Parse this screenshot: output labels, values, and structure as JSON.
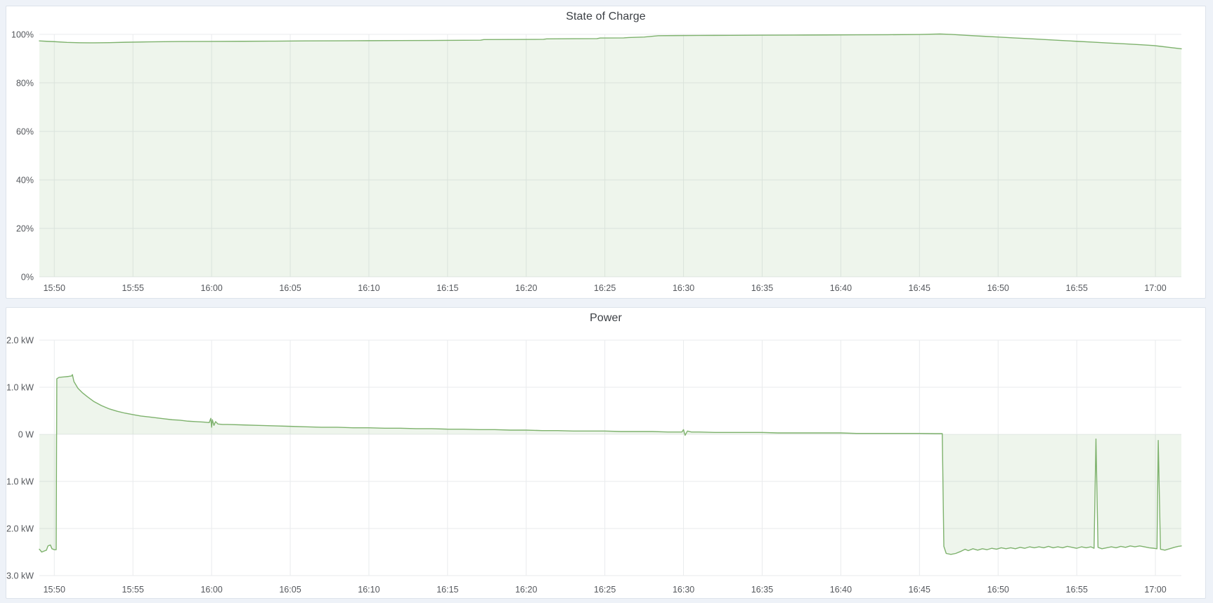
{
  "page": {
    "background_color": "#eef2f8",
    "panel_background": "#ffffff",
    "panel_border_color": "#dde3eb"
  },
  "panels": [
    {
      "title": "State of Charge"
    },
    {
      "title": "Power"
    }
  ],
  "chart_data": [
    {
      "type": "area",
      "title": "State of Charge",
      "xlabel": "",
      "ylabel": "",
      "unit": "%",
      "legend": "none",
      "grid": true,
      "line_color": "#7eb26d",
      "fill_color": "rgba(126,178,109,0.13)",
      "grid_color": "#e9ebed",
      "tick_text_color": "#55585d",
      "x_range_minutes": [
        49.05,
        121.65
      ],
      "ylim": [
        0,
        102
      ],
      "x_ticks": [
        {
          "m": 50,
          "label": "15:50"
        },
        {
          "m": 55,
          "label": "15:55"
        },
        {
          "m": 60,
          "label": "16:00"
        },
        {
          "m": 65,
          "label": "16:05"
        },
        {
          "m": 70,
          "label": "16:10"
        },
        {
          "m": 75,
          "label": "16:15"
        },
        {
          "m": 80,
          "label": "16:20"
        },
        {
          "m": 85,
          "label": "16:25"
        },
        {
          "m": 90,
          "label": "16:30"
        },
        {
          "m": 95,
          "label": "16:35"
        },
        {
          "m": 100,
          "label": "16:40"
        },
        {
          "m": 105,
          "label": "16:45"
        },
        {
          "m": 110,
          "label": "16:50"
        },
        {
          "m": 115,
          "label": "16:55"
        },
        {
          "m": 120,
          "label": "17:00"
        }
      ],
      "y_ticks": [
        {
          "v": 0,
          "label": "0%"
        },
        {
          "v": 20,
          "label": "20%"
        },
        {
          "v": 40,
          "label": "40%"
        },
        {
          "v": 60,
          "label": "60%"
        },
        {
          "v": 80,
          "label": "80%"
        },
        {
          "v": 100,
          "label": "100%"
        }
      ],
      "series": [
        {
          "name": "State of Charge",
          "points": [
            [
              49.05,
              97.3
            ],
            [
              49.5,
              97.15
            ],
            [
              50,
              97.0
            ],
            [
              50.8,
              96.7
            ],
            [
              51.6,
              96.55
            ],
            [
              52.5,
              96.5
            ],
            [
              53.5,
              96.6
            ],
            [
              54.5,
              96.75
            ],
            [
              56,
              96.9
            ],
            [
              58,
              97.05
            ],
            [
              60,
              97.1
            ],
            [
              62,
              97.15
            ],
            [
              64,
              97.2
            ],
            [
              66,
              97.3
            ],
            [
              68,
              97.35
            ],
            [
              70,
              97.4
            ],
            [
              72,
              97.45
            ],
            [
              74,
              97.5
            ],
            [
              76,
              97.55
            ],
            [
              77.1,
              97.6
            ],
            [
              77.3,
              97.85
            ],
            [
              79,
              97.9
            ],
            [
              81.1,
              97.95
            ],
            [
              81.3,
              98.15
            ],
            [
              83,
              98.2
            ],
            [
              84.5,
              98.25
            ],
            [
              84.7,
              98.5
            ],
            [
              86.2,
              98.55
            ],
            [
              86.5,
              98.7
            ],
            [
              87.5,
              98.9
            ],
            [
              88.4,
              99.45
            ],
            [
              89.5,
              99.5
            ],
            [
              91,
              99.55
            ],
            [
              93,
              99.6
            ],
            [
              95,
              99.65
            ],
            [
              97,
              99.7
            ],
            [
              99,
              99.75
            ],
            [
              101,
              99.8
            ],
            [
              103,
              99.85
            ],
            [
              105,
              99.95
            ],
            [
              106.3,
              100.15
            ],
            [
              107,
              100.0
            ],
            [
              108,
              99.6
            ],
            [
              109,
              99.25
            ],
            [
              110,
              98.9
            ],
            [
              111,
              98.55
            ],
            [
              112,
              98.2
            ],
            [
              113,
              97.85
            ],
            [
              114,
              97.5
            ],
            [
              115,
              97.15
            ],
            [
              116,
              96.8
            ],
            [
              117,
              96.45
            ],
            [
              118,
              96.1
            ],
            [
              119,
              95.75
            ],
            [
              119.9,
              95.4
            ],
            [
              120.8,
              94.7
            ],
            [
              121.65,
              94.05
            ]
          ]
        }
      ]
    },
    {
      "type": "area",
      "title": "Power",
      "xlabel": "",
      "ylabel": "",
      "unit": "kW",
      "legend": "none",
      "grid": true,
      "line_color": "#7eb26d",
      "fill_color": "rgba(126,178,109,0.13)",
      "grid_color": "#e9ebed",
      "tick_text_color": "#55585d",
      "x_range_minutes": [
        49.05,
        121.65
      ],
      "ylim": [
        -3.06,
        2.12
      ],
      "x_ticks": [
        {
          "m": 50,
          "label": "15:50"
        },
        {
          "m": 55,
          "label": "15:55"
        },
        {
          "m": 60,
          "label": "16:00"
        },
        {
          "m": 65,
          "label": "16:05"
        },
        {
          "m": 70,
          "label": "16:10"
        },
        {
          "m": 75,
          "label": "16:15"
        },
        {
          "m": 80,
          "label": "16:20"
        },
        {
          "m": 85,
          "label": "16:25"
        },
        {
          "m": 90,
          "label": "16:30"
        },
        {
          "m": 95,
          "label": "16:35"
        },
        {
          "m": 100,
          "label": "16:40"
        },
        {
          "m": 105,
          "label": "16:45"
        },
        {
          "m": 110,
          "label": "16:50"
        },
        {
          "m": 115,
          "label": "16:55"
        },
        {
          "m": 120,
          "label": "17:00"
        }
      ],
      "y_ticks": [
        {
          "v": -3,
          "label": "-3.0 kW"
        },
        {
          "v": -2,
          "label": "-2.0 kW"
        },
        {
          "v": -1,
          "label": "-1.0 kW"
        },
        {
          "v": 0,
          "label": "0 W"
        },
        {
          "v": 1,
          "label": "1.0 kW"
        },
        {
          "v": 2,
          "label": "2.0 kW"
        }
      ],
      "series": [
        {
          "name": "Power",
          "points": [
            [
              49.05,
              -2.44
            ],
            [
              49.2,
              -2.5
            ],
            [
              49.35,
              -2.48
            ],
            [
              49.5,
              -2.46
            ],
            [
              49.6,
              -2.37
            ],
            [
              49.75,
              -2.35
            ],
            [
              49.85,
              -2.43
            ],
            [
              50.0,
              -2.45
            ],
            [
              50.12,
              -2.45
            ],
            [
              50.16,
              1.18
            ],
            [
              50.3,
              1.21
            ],
            [
              50.6,
              1.22
            ],
            [
              50.9,
              1.23
            ],
            [
              51.1,
              1.24
            ],
            [
              51.15,
              1.27
            ],
            [
              51.25,
              1.12
            ],
            [
              51.5,
              0.98
            ],
            [
              51.8,
              0.88
            ],
            [
              52.1,
              0.8
            ],
            [
              52.5,
              0.7
            ],
            [
              53,
              0.61
            ],
            [
              53.5,
              0.54
            ],
            [
              54,
              0.49
            ],
            [
              54.5,
              0.45
            ],
            [
              55,
              0.42
            ],
            [
              55.5,
              0.39
            ],
            [
              56,
              0.37
            ],
            [
              56.5,
              0.35
            ],
            [
              57,
              0.33
            ],
            [
              57.5,
              0.31
            ],
            [
              58,
              0.3
            ],
            [
              58.5,
              0.28
            ],
            [
              59,
              0.27
            ],
            [
              59.5,
              0.26
            ],
            [
              59.85,
              0.25
            ],
            [
              59.95,
              0.34
            ],
            [
              60.0,
              0.15
            ],
            [
              60.05,
              0.31
            ],
            [
              60.15,
              0.19
            ],
            [
              60.25,
              0.27
            ],
            [
              60.4,
              0.22
            ],
            [
              60.7,
              0.21
            ],
            [
              61,
              0.21
            ],
            [
              62,
              0.2
            ],
            [
              63,
              0.19
            ],
            [
              64,
              0.18
            ],
            [
              65,
              0.17
            ],
            [
              66,
              0.16
            ],
            [
              67,
              0.15
            ],
            [
              68,
              0.15
            ],
            [
              69,
              0.14
            ],
            [
              70,
              0.14
            ],
            [
              71,
              0.13
            ],
            [
              72,
              0.13
            ],
            [
              73,
              0.12
            ],
            [
              74,
              0.12
            ],
            [
              75,
              0.11
            ],
            [
              76,
              0.11
            ],
            [
              77,
              0.1
            ],
            [
              78,
              0.1
            ],
            [
              79,
              0.09
            ],
            [
              80,
              0.09
            ],
            [
              81,
              0.08
            ],
            [
              82,
              0.08
            ],
            [
              83,
              0.07
            ],
            [
              84,
              0.07
            ],
            [
              85,
              0.07
            ],
            [
              86,
              0.06
            ],
            [
              87,
              0.06
            ],
            [
              88,
              0.06
            ],
            [
              89,
              0.05
            ],
            [
              89.9,
              0.05
            ],
            [
              90.0,
              0.1
            ],
            [
              90.1,
              -0.02
            ],
            [
              90.25,
              0.07
            ],
            [
              90.5,
              0.05
            ],
            [
              91,
              0.05
            ],
            [
              92,
              0.04
            ],
            [
              93,
              0.04
            ],
            [
              94,
              0.04
            ],
            [
              95,
              0.04
            ],
            [
              96,
              0.03
            ],
            [
              97,
              0.03
            ],
            [
              98,
              0.03
            ],
            [
              99,
              0.03
            ],
            [
              100,
              0.03
            ],
            [
              101,
              0.02
            ],
            [
              102,
              0.02
            ],
            [
              103,
              0.02
            ],
            [
              104,
              0.02
            ],
            [
              105,
              0.02
            ],
            [
              106,
              0.015
            ],
            [
              106.45,
              0.015
            ],
            [
              106.55,
              -2.38
            ],
            [
              106.7,
              -2.53
            ],
            [
              107.0,
              -2.55
            ],
            [
              107.3,
              -2.53
            ],
            [
              107.6,
              -2.49
            ],
            [
              107.9,
              -2.44
            ],
            [
              108.1,
              -2.47
            ],
            [
              108.4,
              -2.43
            ],
            [
              108.7,
              -2.46
            ],
            [
              109,
              -2.43
            ],
            [
              109.3,
              -2.45
            ],
            [
              109.6,
              -2.42
            ],
            [
              109.9,
              -2.44
            ],
            [
              110.2,
              -2.41
            ],
            [
              110.5,
              -2.43
            ],
            [
              110.8,
              -2.41
            ],
            [
              111.1,
              -2.43
            ],
            [
              111.4,
              -2.4
            ],
            [
              111.7,
              -2.42
            ],
            [
              112,
              -2.39
            ],
            [
              112.3,
              -2.41
            ],
            [
              112.6,
              -2.39
            ],
            [
              112.9,
              -2.41
            ],
            [
              113.2,
              -2.38
            ],
            [
              113.5,
              -2.41
            ],
            [
              113.8,
              -2.39
            ],
            [
              114.1,
              -2.41
            ],
            [
              114.4,
              -2.38
            ],
            [
              114.7,
              -2.4
            ],
            [
              115,
              -2.42
            ],
            [
              115.3,
              -2.39
            ],
            [
              115.6,
              -2.41
            ],
            [
              115.9,
              -2.39
            ],
            [
              116.1,
              -2.42
            ],
            [
              116.22,
              -0.1
            ],
            [
              116.35,
              -2.4
            ],
            [
              116.6,
              -2.43
            ],
            [
              116.9,
              -2.41
            ],
            [
              117.2,
              -2.39
            ],
            [
              117.5,
              -2.41
            ],
            [
              117.8,
              -2.38
            ],
            [
              118.1,
              -2.4
            ],
            [
              118.4,
              -2.37
            ],
            [
              118.7,
              -2.39
            ],
            [
              119,
              -2.37
            ],
            [
              119.3,
              -2.39
            ],
            [
              119.6,
              -2.41
            ],
            [
              119.9,
              -2.42
            ],
            [
              120.1,
              -2.43
            ],
            [
              120.18,
              -0.13
            ],
            [
              120.32,
              -2.44
            ],
            [
              120.6,
              -2.46
            ],
            [
              120.9,
              -2.43
            ],
            [
              121.2,
              -2.4
            ],
            [
              121.45,
              -2.38
            ],
            [
              121.65,
              -2.37
            ]
          ]
        }
      ]
    }
  ]
}
